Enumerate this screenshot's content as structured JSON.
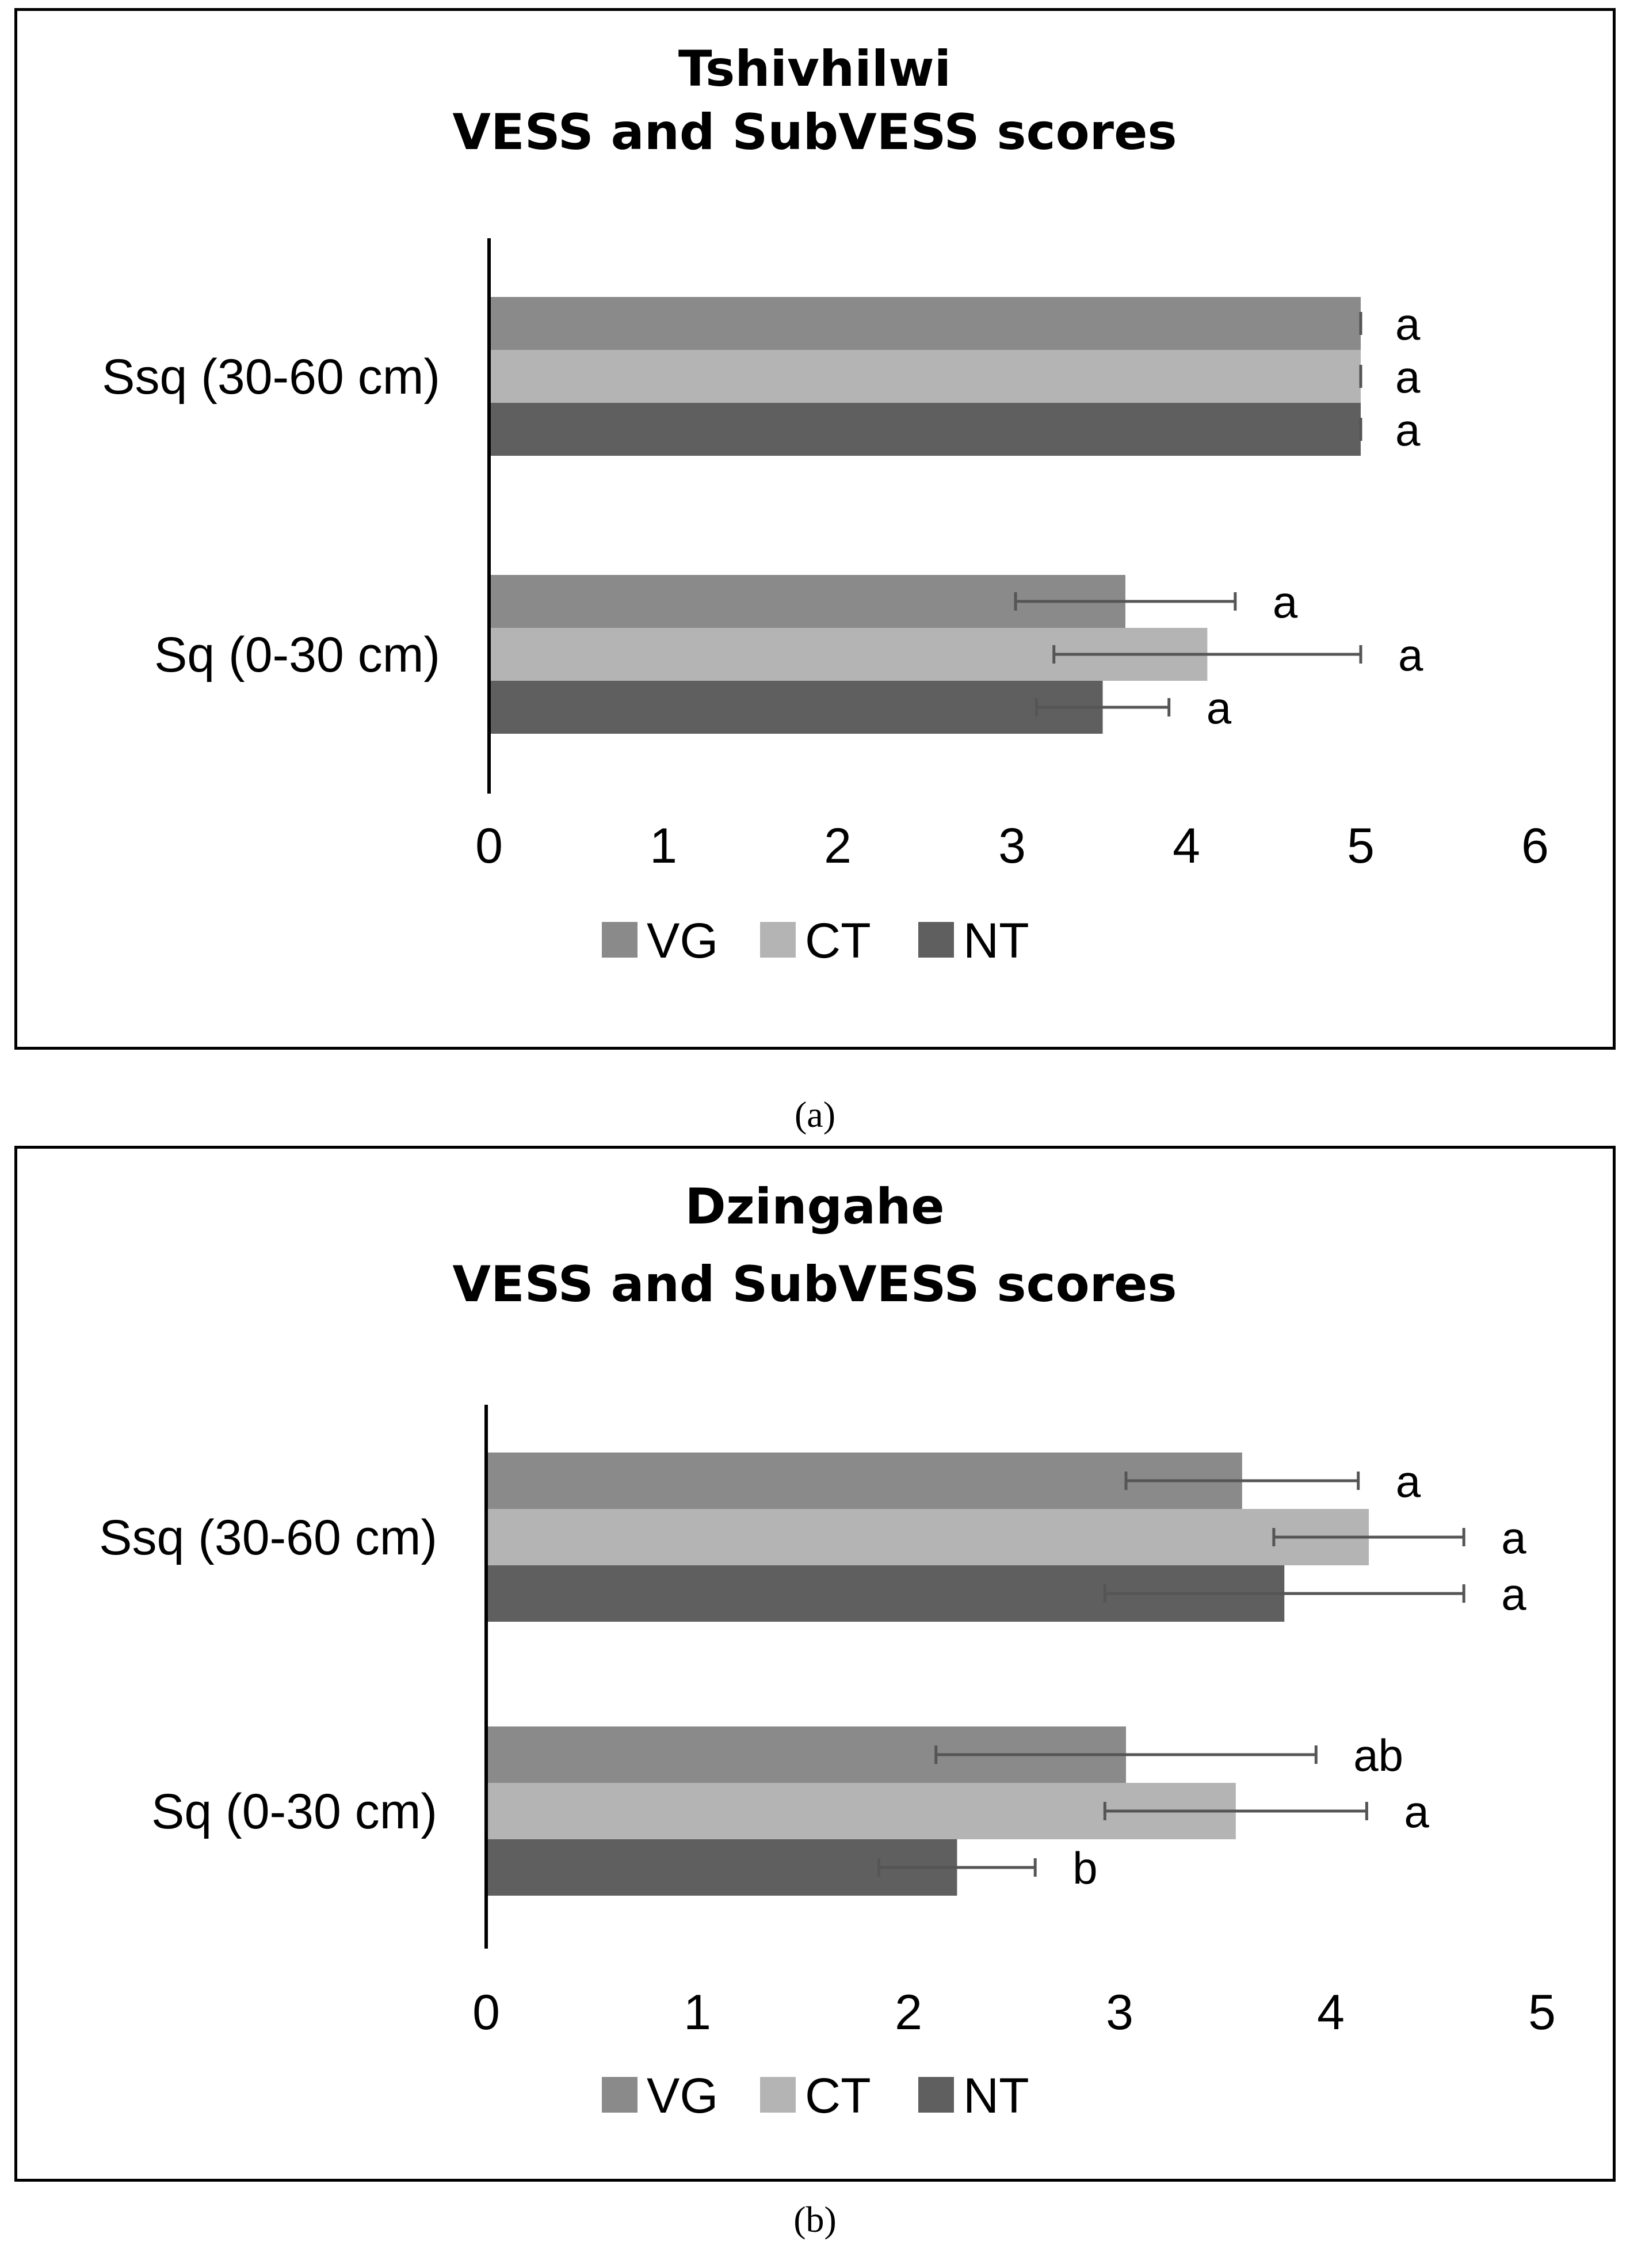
{
  "captions": [
    "(a)",
    "(b)"
  ],
  "colors": {
    "VG": "#8a8a8a",
    "CT": "#b4b4b4",
    "NT": "#5f5f5f",
    "error": "#555555",
    "axis": "#000000"
  },
  "chart_data": [
    {
      "type": "bar",
      "orientation": "horizontal",
      "title": "Tshivhilwi",
      "subtitle": "VESS and SubVESS scores",
      "categories": [
        "Ssq (30-60 cm)",
        "Sq (0-30 cm)"
      ],
      "series": [
        {
          "name": "VG",
          "values": [
            5.0,
            3.65
          ],
          "errors": [
            0.0,
            0.63
          ],
          "labels": [
            "a",
            "a"
          ]
        },
        {
          "name": "CT",
          "values": [
            5.0,
            4.12
          ],
          "errors": [
            0.0,
            0.88
          ],
          "labels": [
            "a",
            "a"
          ]
        },
        {
          "name": "NT",
          "values": [
            5.0,
            3.52
          ],
          "errors": [
            0.0,
            0.38
          ],
          "labels": [
            "a",
            "a"
          ]
        }
      ],
      "xlim": [
        0,
        6
      ],
      "xticks": [
        "0",
        "1",
        "2",
        "3",
        "4",
        "5",
        "6"
      ],
      "legend": [
        "VG",
        "CT",
        "NT"
      ],
      "legend_position": "bottom"
    },
    {
      "type": "bar",
      "orientation": "horizontal",
      "title": "Dzingahe",
      "subtitle": "VESS and SubVESS scores",
      "categories": [
        "Ssq (30-60 cm)",
        "Sq (0-30 cm)"
      ],
      "series": [
        {
          "name": "VG",
          "values": [
            3.58,
            3.03
          ],
          "errors": [
            0.55,
            0.9
          ],
          "labels": [
            "a",
            "ab"
          ]
        },
        {
          "name": "CT",
          "values": [
            4.18,
            3.55
          ],
          "errors": [
            0.45,
            0.62
          ],
          "labels": [
            "a",
            "a"
          ]
        },
        {
          "name": "NT",
          "values": [
            3.78,
            2.23
          ],
          "errors": [
            0.85,
            0.37
          ],
          "labels": [
            "a",
            "b"
          ]
        }
      ],
      "xlim": [
        0,
        5
      ],
      "xticks": [
        "0",
        "1",
        "2",
        "3",
        "4",
        "5"
      ],
      "legend": [
        "VG",
        "CT",
        "NT"
      ],
      "legend_position": "bottom"
    }
  ]
}
